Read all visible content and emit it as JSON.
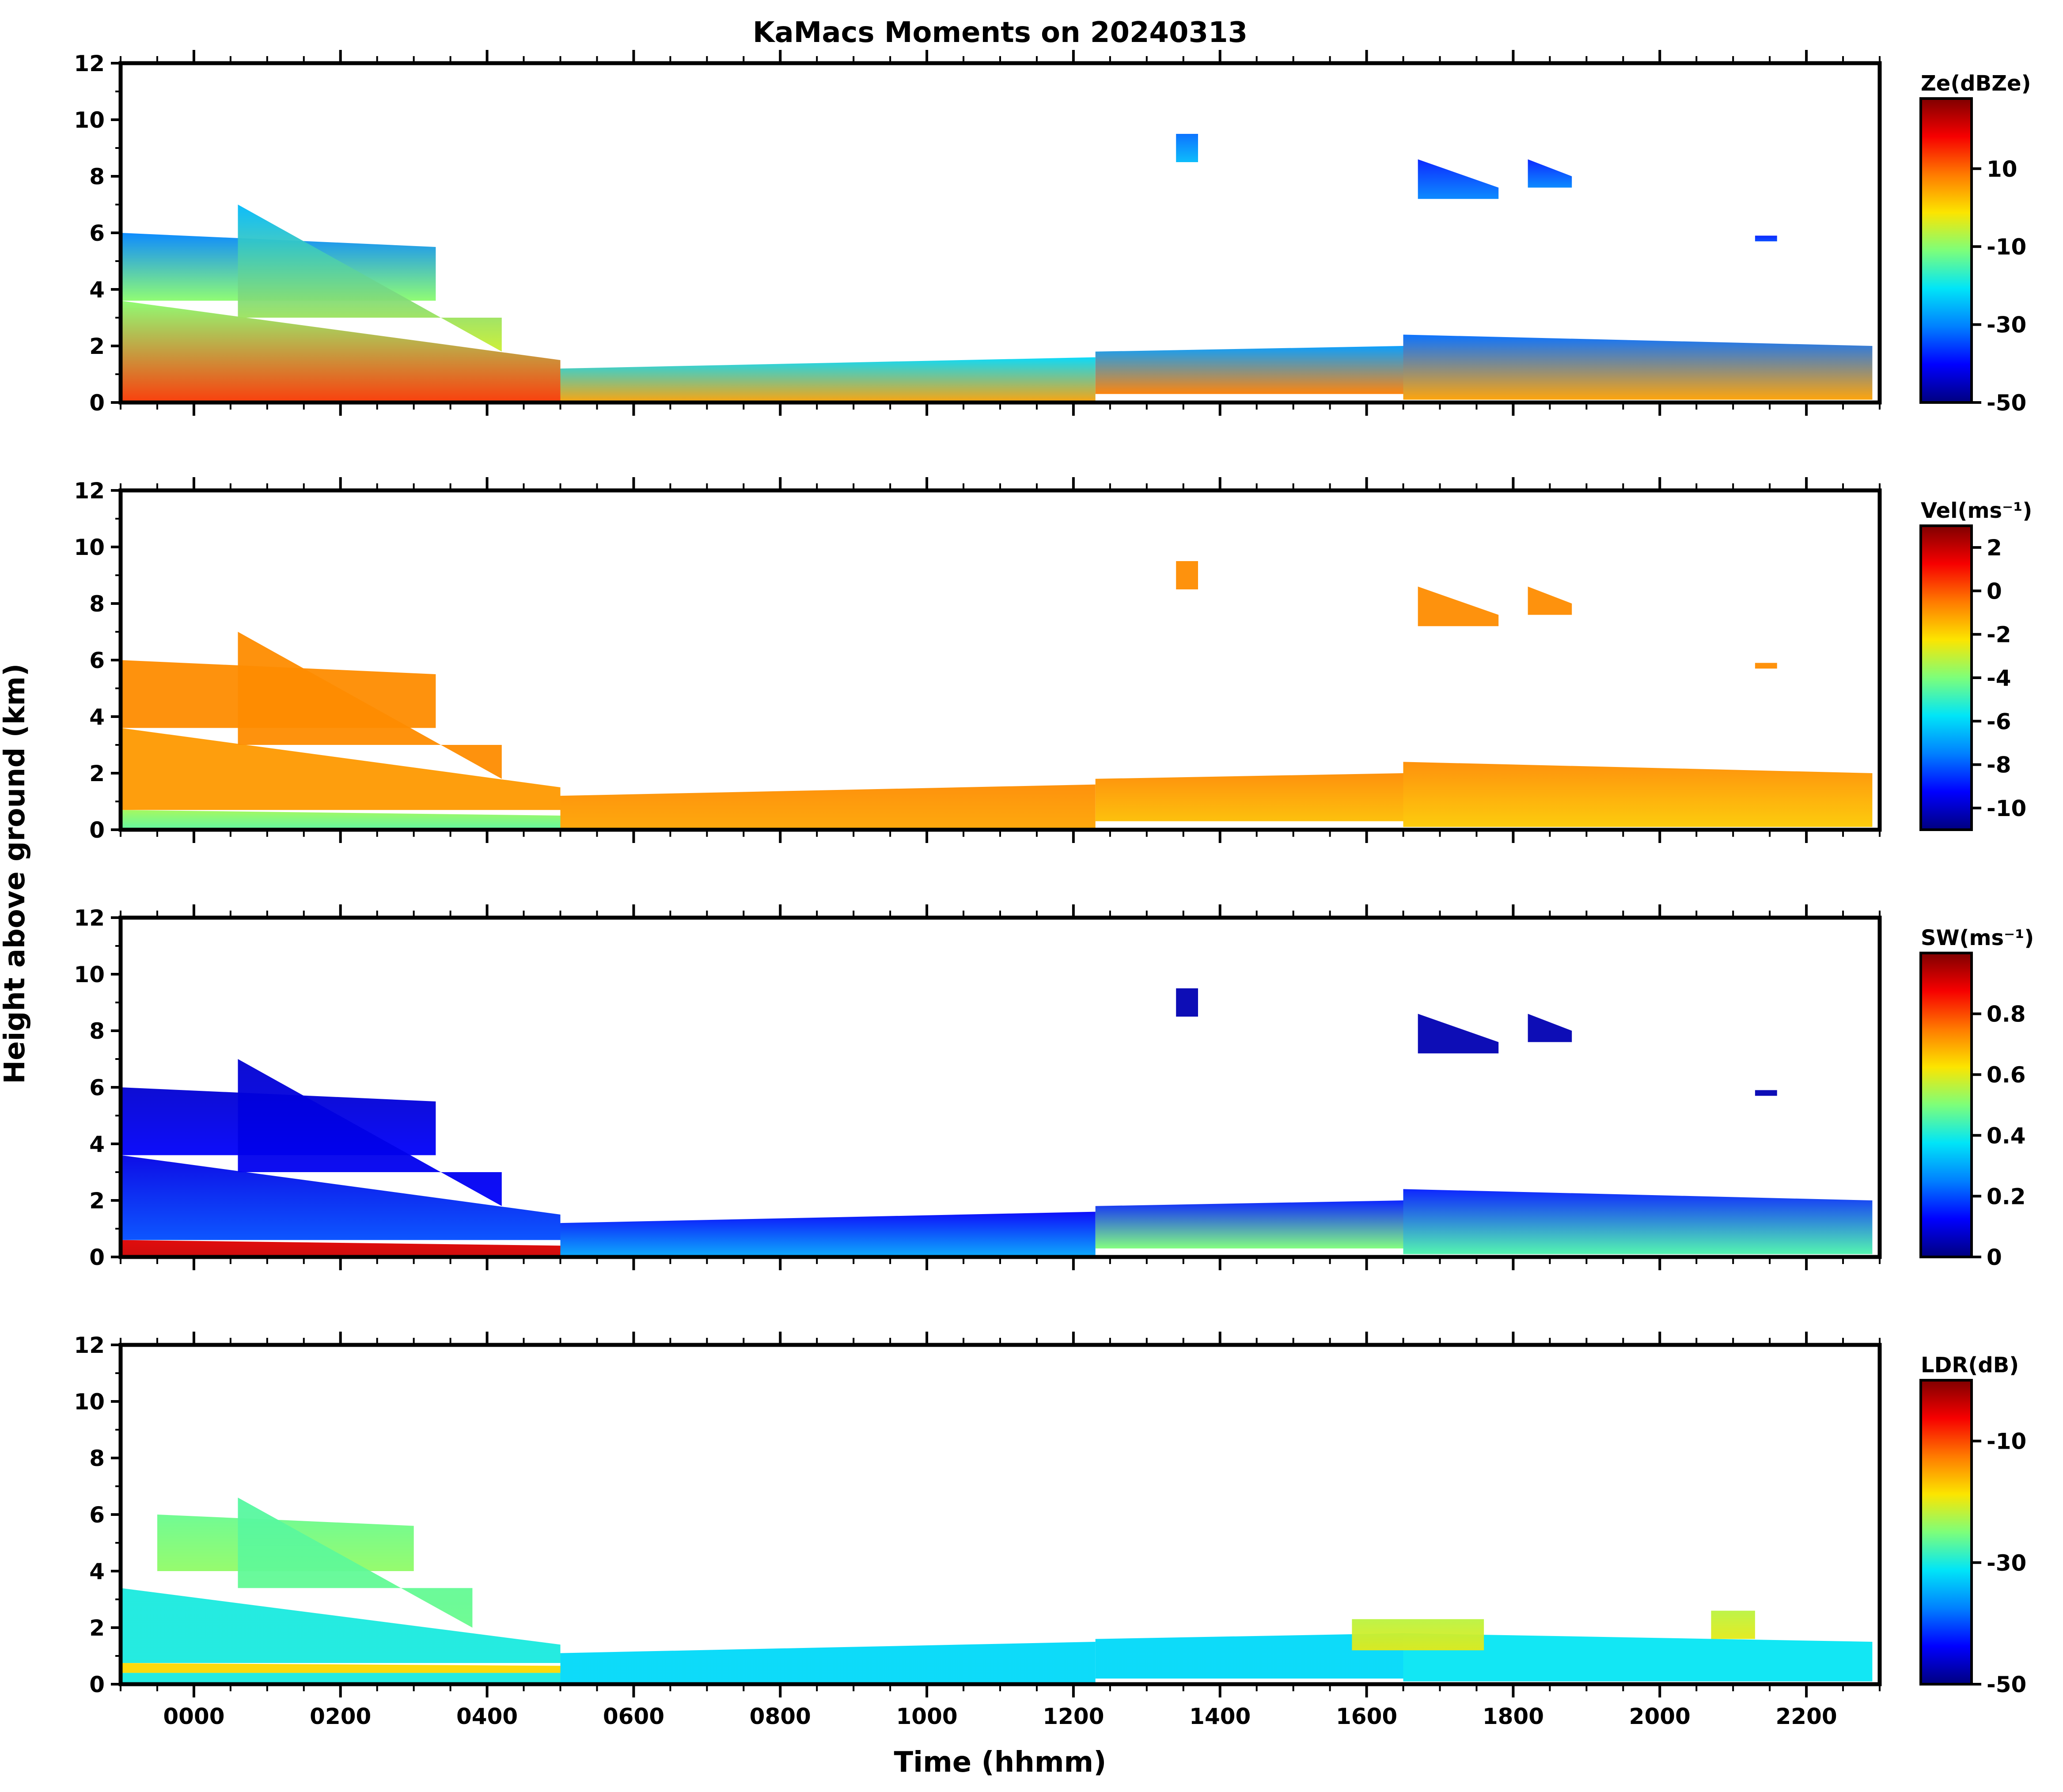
{
  "figure": {
    "title": "KaMacs Moments on 20240313",
    "xlabel": "Time (hhmm)",
    "ylabel": "Height above ground (km)"
  },
  "colors": {
    "colormap": [
      "#00007f",
      "#0000ff",
      "#0080ff",
      "#00e5f8",
      "#7dff7a",
      "#fce500",
      "#ff7a00",
      "#f70000",
      "#7f0000"
    ],
    "axis": "#000000",
    "background": "#ffffff"
  },
  "chart_data": [
    {
      "type": "heatmap",
      "name": "Reflectivity",
      "colorbar_label": "Ze(dBZe)",
      "clim": [
        -50,
        28
      ],
      "cbar_ticks": [
        10,
        -10,
        -30,
        -50
      ],
      "x_range_hours": [
        -1,
        23
      ],
      "x_ticks": [
        "0000",
        "0200",
        "0400",
        "0600",
        "0800",
        "1000",
        "1200",
        "1400",
        "1600",
        "1800",
        "2000",
        "2200"
      ],
      "ylim": [
        0,
        12
      ],
      "y_ticks": [
        0,
        2,
        4,
        6,
        8,
        10,
        12
      ],
      "echo_layers": [
        {
          "t0": -1.0,
          "t1": 5.0,
          "base": 0.0,
          "top_start": 3.6,
          "top_end": 1.5,
          "value_bottom": 14,
          "value_top": -10
        },
        {
          "t0": -1.0,
          "t1": 3.3,
          "base": 3.6,
          "top_start": 6.0,
          "top_end": 5.5,
          "value_bottom": -10,
          "value_top": -30
        },
        {
          "t0": 0.6,
          "t1": 4.2,
          "base": 3.0,
          "top_start": 7.0,
          "top_end": 1.8,
          "value_bottom": -5,
          "value_top": -25
        },
        {
          "t0": 5.0,
          "t1": 12.3,
          "base": 0.0,
          "top_start": 1.2,
          "top_end": 1.6,
          "value_bottom": 5,
          "value_top": -22
        },
        {
          "t0": 12.3,
          "t1": 16.5,
          "base": 0.3,
          "top_start": 1.8,
          "top_end": 2.0,
          "value_bottom": 8,
          "value_top": -28
        },
        {
          "t0": 16.5,
          "t1": 22.9,
          "base": 0.1,
          "top_start": 2.4,
          "top_end": 2.0,
          "value_bottom": 5,
          "value_top": -32
        },
        {
          "t0": 13.4,
          "t1": 13.7,
          "base": 8.5,
          "top_start": 9.5,
          "top_end": 9.5,
          "value_bottom": -25,
          "value_top": -32
        },
        {
          "t0": 16.7,
          "t1": 17.8,
          "base": 7.2,
          "top_start": 8.6,
          "top_end": 7.6,
          "value_bottom": -30,
          "value_top": -38
        },
        {
          "t0": 18.2,
          "t1": 18.8,
          "base": 7.6,
          "top_start": 8.6,
          "top_end": 8.0,
          "value_bottom": -30,
          "value_top": -38
        },
        {
          "t0": 21.3,
          "t1": 21.6,
          "base": 5.7,
          "top_start": 5.9,
          "top_end": 5.9,
          "value_bottom": -35,
          "value_top": -38
        }
      ]
    },
    {
      "type": "heatmap",
      "name": "Doppler velocity",
      "colorbar_label": "Vel(ms⁻¹)",
      "clim": [
        -11,
        3
      ],
      "cbar_ticks": [
        2,
        0,
        -2,
        -4,
        -6,
        -8,
        -10
      ],
      "x_range_hours": [
        -1,
        23
      ],
      "x_ticks": [
        "0000",
        "0200",
        "0400",
        "0600",
        "0800",
        "1000",
        "1200",
        "1400",
        "1600",
        "1800",
        "2000",
        "2200"
      ],
      "ylim": [
        0,
        12
      ],
      "y_ticks": [
        0,
        2,
        4,
        6,
        8,
        10,
        12
      ],
      "echo_layers": [
        {
          "t0": -1.0,
          "t1": 5.0,
          "base": 0.0,
          "top_start": 0.7,
          "top_end": 0.5,
          "value_bottom": -4.5,
          "value_top": -3.5
        },
        {
          "t0": -1.0,
          "t1": 5.0,
          "base": 0.7,
          "top_start": 3.6,
          "top_end": 1.5,
          "value_bottom": -1.0,
          "value_top": -1.0
        },
        {
          "t0": -1.0,
          "t1": 3.3,
          "base": 3.6,
          "top_start": 6.0,
          "top_end": 5.5,
          "value_bottom": -0.8,
          "value_top": -0.8
        },
        {
          "t0": 0.6,
          "t1": 4.2,
          "base": 3.0,
          "top_start": 7.0,
          "top_end": 1.8,
          "value_bottom": -0.8,
          "value_top": -0.8
        },
        {
          "t0": 5.0,
          "t1": 12.3,
          "base": 0.0,
          "top_start": 1.2,
          "top_end": 1.6,
          "value_bottom": -1.2,
          "value_top": -0.8
        },
        {
          "t0": 12.3,
          "t1": 16.5,
          "base": 0.3,
          "top_start": 1.8,
          "top_end": 2.0,
          "value_bottom": -1.6,
          "value_top": -0.8
        },
        {
          "t0": 16.5,
          "t1": 22.9,
          "base": 0.1,
          "top_start": 2.4,
          "top_end": 2.0,
          "value_bottom": -1.8,
          "value_top": -0.8
        },
        {
          "t0": 13.4,
          "t1": 13.7,
          "base": 8.5,
          "top_start": 9.5,
          "top_end": 9.5,
          "value_bottom": -0.8,
          "value_top": -0.8
        },
        {
          "t0": 16.7,
          "t1": 17.8,
          "base": 7.2,
          "top_start": 8.6,
          "top_end": 7.6,
          "value_bottom": -0.8,
          "value_top": -0.8
        },
        {
          "t0": 18.2,
          "t1": 18.8,
          "base": 7.6,
          "top_start": 8.6,
          "top_end": 8.0,
          "value_bottom": -0.8,
          "value_top": -0.8
        },
        {
          "t0": 21.3,
          "t1": 21.6,
          "base": 5.7,
          "top_start": 5.9,
          "top_end": 5.9,
          "value_bottom": -0.8,
          "value_top": -0.8
        }
      ]
    },
    {
      "type": "heatmap",
      "name": "Spectrum width",
      "colorbar_label": "SW(ms⁻¹)",
      "clim": [
        0,
        1
      ],
      "cbar_ticks": [
        0.8,
        0.6,
        0.4,
        0.2,
        0.0
      ],
      "x_range_hours": [
        -1,
        23
      ],
      "x_ticks": [
        "0000",
        "0200",
        "0400",
        "0600",
        "0800",
        "1000",
        "1200",
        "1400",
        "1600",
        "1800",
        "2000",
        "2200"
      ],
      "ylim": [
        0,
        12
      ],
      "y_ticks": [
        0,
        2,
        4,
        6,
        8,
        10,
        12
      ],
      "echo_layers": [
        {
          "t0": -1.0,
          "t1": 5.0,
          "base": 0.0,
          "top_start": 0.6,
          "top_end": 0.4,
          "value_bottom": 0.92,
          "value_top": 0.9
        },
        {
          "t0": -1.0,
          "t1": 5.0,
          "base": 0.6,
          "top_start": 3.6,
          "top_end": 1.5,
          "value_bottom": 0.2,
          "value_top": 0.1
        },
        {
          "t0": -1.0,
          "t1": 3.3,
          "base": 3.6,
          "top_start": 6.0,
          "top_end": 5.5,
          "value_bottom": 0.12,
          "value_top": 0.08
        },
        {
          "t0": 0.6,
          "t1": 4.2,
          "base": 3.0,
          "top_start": 7.0,
          "top_end": 1.8,
          "value_bottom": 0.12,
          "value_top": 0.08
        },
        {
          "t0": 5.0,
          "t1": 12.3,
          "base": 0.0,
          "top_start": 1.2,
          "top_end": 1.6,
          "value_bottom": 0.3,
          "value_top": 0.12
        },
        {
          "t0": 12.3,
          "t1": 16.5,
          "base": 0.3,
          "top_start": 1.8,
          "top_end": 2.0,
          "value_bottom": 0.5,
          "value_top": 0.15
        },
        {
          "t0": 16.5,
          "t1": 22.9,
          "base": 0.1,
          "top_start": 2.4,
          "top_end": 2.0,
          "value_bottom": 0.45,
          "value_top": 0.15
        },
        {
          "t0": 13.4,
          "t1": 13.7,
          "base": 8.5,
          "top_start": 9.5,
          "top_end": 9.5,
          "value_bottom": 0.05,
          "value_top": 0.05
        },
        {
          "t0": 16.7,
          "t1": 17.8,
          "base": 7.2,
          "top_start": 8.6,
          "top_end": 7.6,
          "value_bottom": 0.05,
          "value_top": 0.05
        },
        {
          "t0": 18.2,
          "t1": 18.8,
          "base": 7.6,
          "top_start": 8.6,
          "top_end": 8.0,
          "value_bottom": 0.05,
          "value_top": 0.05
        },
        {
          "t0": 21.3,
          "t1": 21.6,
          "base": 5.7,
          "top_start": 5.9,
          "top_end": 5.9,
          "value_bottom": 0.05,
          "value_top": 0.05
        }
      ]
    },
    {
      "type": "heatmap",
      "name": "Linear depolarization ratio",
      "colorbar_label": "LDR(dB)",
      "clim": [
        -50,
        0
      ],
      "cbar_ticks": [
        -10,
        -30,
        -50
      ],
      "x_range_hours": [
        -1,
        23
      ],
      "x_ticks": [
        "0000",
        "0200",
        "0400",
        "0600",
        "0800",
        "1000",
        "1200",
        "1400",
        "1600",
        "1800",
        "2000",
        "2200"
      ],
      "ylim": [
        0,
        12
      ],
      "y_ticks": [
        0,
        2,
        4,
        6,
        8,
        10,
        12
      ],
      "echo_layers": [
        {
          "t0": -1.0,
          "t1": 5.0,
          "base": 0.4,
          "top_start": 0.75,
          "top_end": 0.65,
          "value_bottom": -18,
          "value_top": -18
        },
        {
          "t0": -1.0,
          "t1": 5.0,
          "base": 0.0,
          "top_start": 0.4,
          "top_end": 0.4,
          "value_bottom": -30,
          "value_top": -30
        },
        {
          "t0": -1.0,
          "t1": 5.0,
          "base": 0.75,
          "top_start": 3.4,
          "top_end": 1.4,
          "value_bottom": -30,
          "value_top": -30
        },
        {
          "t0": -0.5,
          "t1": 3.0,
          "base": 4.0,
          "top_start": 6.0,
          "top_end": 5.6,
          "value_bottom": -24,
          "value_top": -26
        },
        {
          "t0": 0.6,
          "t1": 3.8,
          "base": 3.4,
          "top_start": 6.6,
          "top_end": 2.0,
          "value_bottom": -26,
          "value_top": -27
        },
        {
          "t0": 5.0,
          "t1": 12.3,
          "base": 0.0,
          "top_start": 1.1,
          "top_end": 1.5,
          "value_bottom": -32,
          "value_top": -32
        },
        {
          "t0": 12.3,
          "t1": 16.5,
          "base": 0.2,
          "top_start": 1.6,
          "top_end": 1.8,
          "value_bottom": -32,
          "value_top": -32
        },
        {
          "t0": 16.5,
          "t1": 22.9,
          "base": 0.1,
          "top_start": 1.8,
          "top_end": 1.5,
          "value_bottom": -31,
          "value_top": -31
        },
        {
          "t0": 15.8,
          "t1": 17.6,
          "base": 1.2,
          "top_start": 2.3,
          "top_end": 2.3,
          "value_bottom": -20,
          "value_top": -22
        },
        {
          "t0": 20.7,
          "t1": 21.3,
          "base": 1.6,
          "top_start": 2.6,
          "top_end": 2.6,
          "value_bottom": -20,
          "value_top": -22
        }
      ]
    }
  ]
}
